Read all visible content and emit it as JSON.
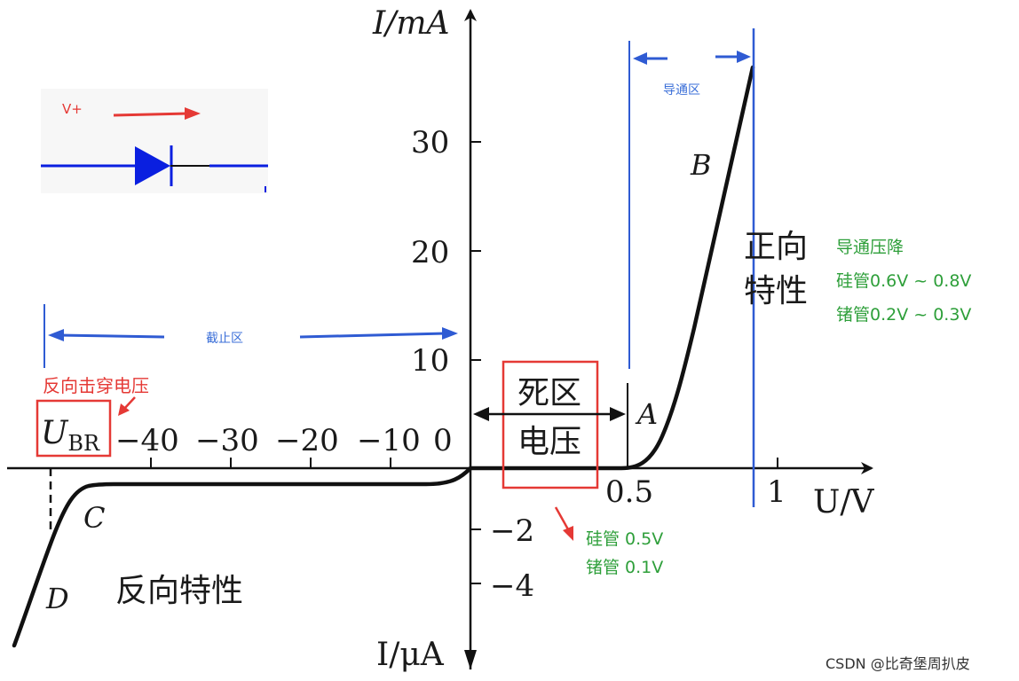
{
  "axes": {
    "y_label_top": "I/mA",
    "y_label_bottom": "I/μA",
    "x_label": "U/V",
    "y_ticks_pos": [
      "10",
      "20",
      "30"
    ],
    "y_ticks_neg": [
      "−2",
      "−4"
    ],
    "x_ticks_pos": [
      "0.5",
      "1"
    ],
    "x_ticks_neg": [
      "−40",
      "−30",
      "−20",
      "−10",
      "0"
    ]
  },
  "curve_points": {
    "A": "A",
    "B": "B",
    "C": "C",
    "D": "D"
  },
  "labels": {
    "ubr_main": "U",
    "ubr_sub": "BR",
    "breakdown_voltage": "反向击穿电压",
    "dead_zone_line1": "死区",
    "dead_zone_line2": "电压",
    "forward_char_line1": "正向",
    "forward_char_line2": "特性",
    "reverse_char": "反向特性",
    "cutoff_region": "截止区",
    "conduction_region": "导通区"
  },
  "notes": {
    "forward_drop_title": "导通压降",
    "forward_drop_si": "硅管0.6V ~ 0.8V",
    "forward_drop_ge": "锗管0.2V ~ 0.3V",
    "dead_zone_si": "硅管 0.5V",
    "dead_zone_ge": "锗管 0.1V"
  },
  "diode_inset": {
    "voltage_label": "V+"
  },
  "watermark": "CSDN @比奇堡周扒皮",
  "colors": {
    "curve": "#111111",
    "annotation_blue": "#2f5bd3",
    "annotation_red": "#e53935",
    "annotation_green": "#2e9f3a",
    "diode_blue": "#0a1fe0"
  }
}
